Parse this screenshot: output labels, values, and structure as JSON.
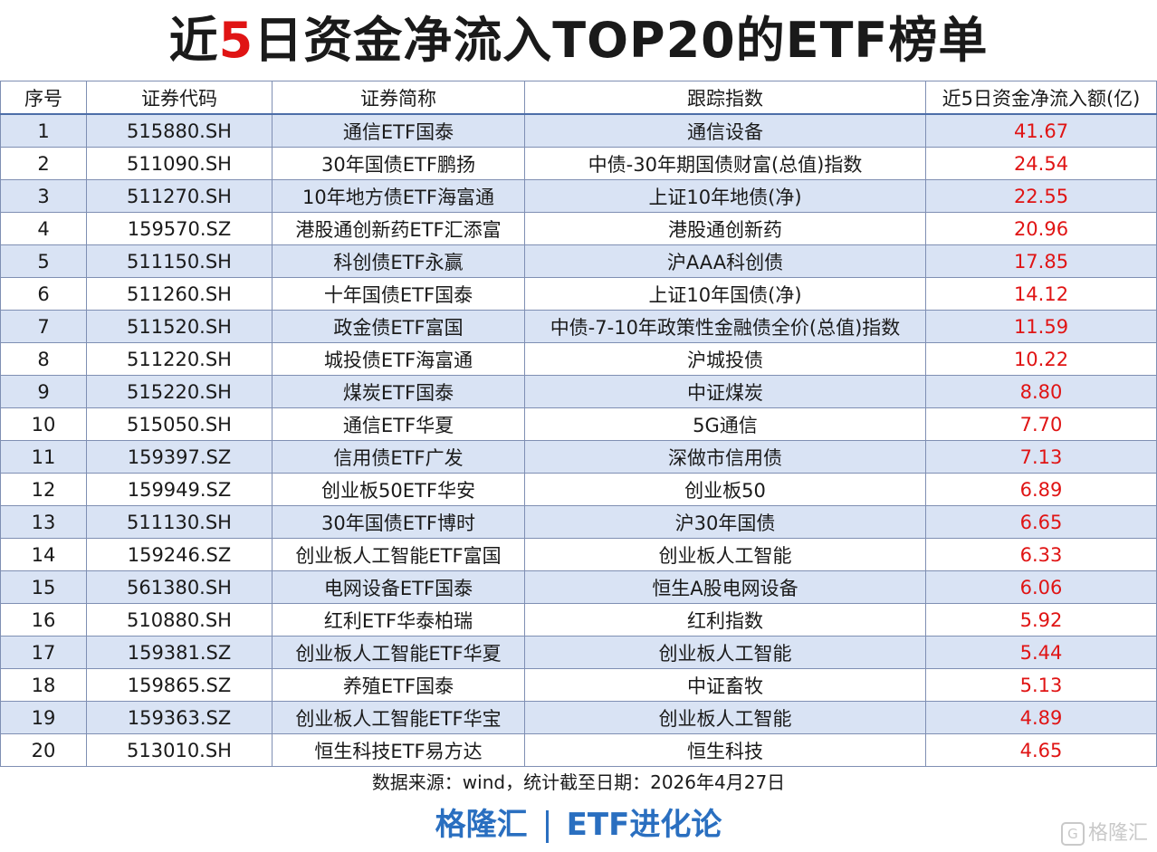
{
  "title": {
    "prefix": "近",
    "number": "5",
    "suffix": "日资金净流入TOP20的ETF榜单"
  },
  "columns": [
    "序号",
    "证券代码",
    "证券简称",
    "跟踪指数",
    "近5日资金净流入额(亿)"
  ],
  "rows": [
    [
      "1",
      "515880.SH",
      "通信ETF国泰",
      "通信设备",
      "41.67"
    ],
    [
      "2",
      "511090.SH",
      "30年国债ETF鹏扬",
      "中债-30年期国债财富(总值)指数",
      "24.54"
    ],
    [
      "3",
      "511270.SH",
      "10年地方债ETF海富通",
      "上证10年地债(净)",
      "22.55"
    ],
    [
      "4",
      "159570.SZ",
      "港股通创新药ETF汇添富",
      "港股通创新药",
      "20.96"
    ],
    [
      "5",
      "511150.SH",
      "科创债ETF永赢",
      "沪AAA科创债",
      "17.85"
    ],
    [
      "6",
      "511260.SH",
      "十年国债ETF国泰",
      "上证10年国债(净)",
      "14.12"
    ],
    [
      "7",
      "511520.SH",
      "政金债ETF富国",
      "中债-7-10年政策性金融债全价(总值)指数",
      "11.59"
    ],
    [
      "8",
      "511220.SH",
      "城投债ETF海富通",
      "沪城投债",
      "10.22"
    ],
    [
      "9",
      "515220.SH",
      "煤炭ETF国泰",
      "中证煤炭",
      "8.80"
    ],
    [
      "10",
      "515050.SH",
      "通信ETF华夏",
      "5G通信",
      "7.70"
    ],
    [
      "11",
      "159397.SZ",
      "信用债ETF广发",
      "深做市信用债",
      "7.13"
    ],
    [
      "12",
      "159949.SZ",
      "创业板50ETF华安",
      "创业板50",
      "6.89"
    ],
    [
      "13",
      "511130.SH",
      "30年国债ETF博时",
      "沪30年国债",
      "6.65"
    ],
    [
      "14",
      "159246.SZ",
      "创业板人工智能ETF富国",
      "创业板人工智能",
      "6.33"
    ],
    [
      "15",
      "561380.SH",
      "电网设备ETF国泰",
      "恒生A股电网设备",
      "6.06"
    ],
    [
      "16",
      "510880.SH",
      "红利ETF华泰柏瑞",
      "红利指数",
      "5.92"
    ],
    [
      "17",
      "159381.SZ",
      "创业板人工智能ETF华夏",
      "创业板人工智能",
      "5.44"
    ],
    [
      "18",
      "159865.SZ",
      "养殖ETF国泰",
      "中证畜牧",
      "5.13"
    ],
    [
      "19",
      "159363.SZ",
      "创业板人工智能ETF华宝",
      "创业板人工智能",
      "4.89"
    ],
    [
      "20",
      "513010.SH",
      "恒生科技ETF易方达",
      "恒生科技",
      "4.65"
    ]
  ],
  "source": "数据来源：wind，统计截至日期：2026年4月27日",
  "brand": {
    "left": "格隆汇",
    "right": "ETF进化论"
  },
  "watermark": "格隆汇",
  "colors": {
    "highlight": "#e01414",
    "band": "#d9e3f4",
    "brand": "#2a6fc0"
  }
}
